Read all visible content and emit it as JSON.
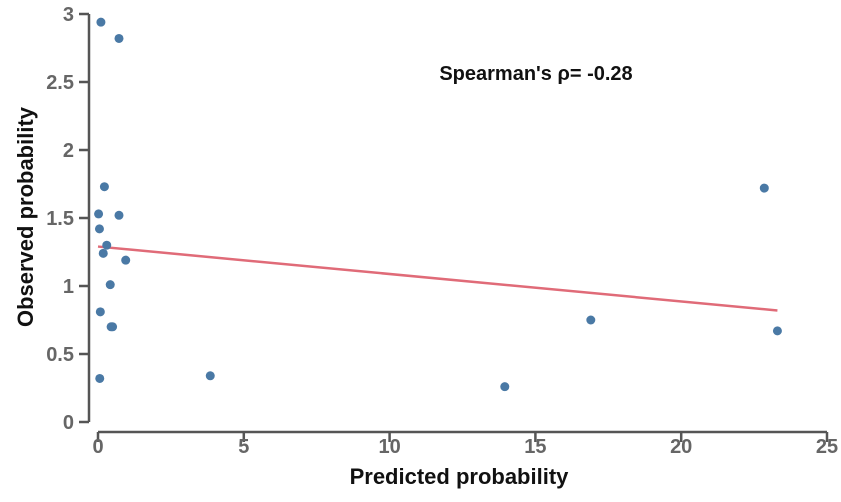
{
  "chart_data": {
    "type": "scatter",
    "xlabel": "Predicted probability",
    "ylabel": "Observed probability",
    "xlim": [
      0,
      25
    ],
    "ylim": [
      0,
      3
    ],
    "x_ticks": [
      0,
      5,
      10,
      15,
      20,
      25
    ],
    "y_ticks": [
      0,
      0.5,
      1,
      1.5,
      2,
      2.5,
      3
    ],
    "x_tick_labels": [
      "0",
      "5",
      "10",
      "15",
      "20",
      "25"
    ],
    "y_tick_labels": [
      "0",
      "0.5",
      "1",
      "1.5",
      "2",
      "2.5",
      "3"
    ],
    "annotation": "Spearman's ρ= -0.28",
    "grid": false,
    "colors": {
      "points": "#4a79a5",
      "trend": "#e06b78",
      "axis": "#555555"
    },
    "points": [
      {
        "x": 0.1,
        "y": 2.94
      },
      {
        "x": 0.72,
        "y": 2.82
      },
      {
        "x": 0.22,
        "y": 1.73
      },
      {
        "x": 0.02,
        "y": 1.53
      },
      {
        "x": 0.72,
        "y": 1.52
      },
      {
        "x": 0.05,
        "y": 1.42
      },
      {
        "x": 0.3,
        "y": 1.3
      },
      {
        "x": 0.18,
        "y": 1.24
      },
      {
        "x": 0.95,
        "y": 1.19
      },
      {
        "x": 0.42,
        "y": 1.01
      },
      {
        "x": 0.08,
        "y": 0.81
      },
      {
        "x": 0.45,
        "y": 0.7
      },
      {
        "x": 0.5,
        "y": 0.7
      },
      {
        "x": 0.06,
        "y": 0.32
      },
      {
        "x": 3.85,
        "y": 0.34
      },
      {
        "x": 13.95,
        "y": 0.26
      },
      {
        "x": 16.9,
        "y": 0.75
      },
      {
        "x": 22.85,
        "y": 1.72
      },
      {
        "x": 23.3,
        "y": 0.67
      }
    ],
    "trendline": {
      "x": [
        0,
        23.3
      ],
      "y": [
        1.29,
        0.82
      ]
    }
  }
}
